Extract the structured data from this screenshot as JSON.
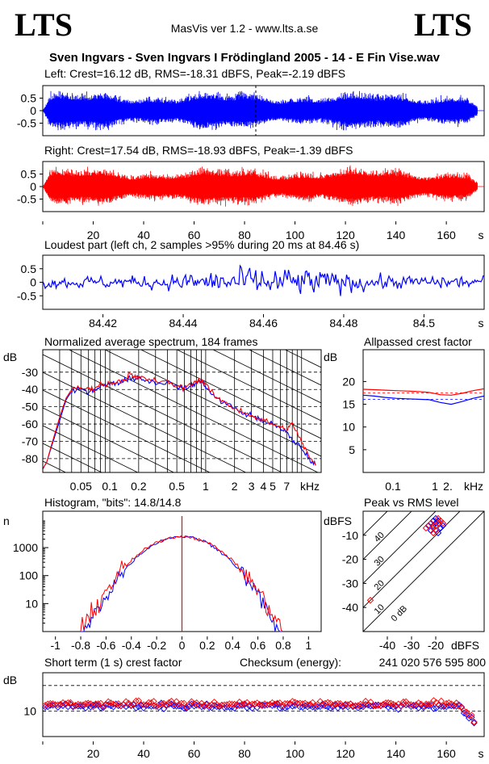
{
  "header": {
    "logo_left": "LTS",
    "logo_right": "LTS",
    "version": "MasVis ver 1.2 - www.lts.a.se",
    "title": "Sven Ingvars - Sven Ingvars I Frödingland 2005 - 14 - E Fin Vise.wav"
  },
  "colors": {
    "left": "#0000ff",
    "right": "#ff0000",
    "axes": "#000000"
  },
  "chart_data": [
    {
      "id": "left_waveform",
      "type": "area",
      "title": "Left: Crest=16.12 dB, RMS=-18.31 dBFS, Peak=-2.19 dBFS",
      "y_ticks": [
        "0.5",
        "0",
        "-0.5"
      ],
      "ylim": [
        -1,
        1
      ],
      "xlim": [
        0,
        175
      ],
      "envelope_peak_max": 0.78,
      "marker_x": 84.46,
      "series": [
        {
          "name": "Left",
          "color": "#0000ff"
        }
      ]
    },
    {
      "id": "right_waveform",
      "type": "area",
      "title": "Right: Crest=17.54 dB, RMS=-18.93 dBFS, Peak=-1.39 dBFS",
      "y_ticks": [
        "0.5",
        "0",
        "-0.5"
      ],
      "x_ticks": [
        "20",
        "40",
        "60",
        "80",
        "100",
        "120",
        "140",
        "160"
      ],
      "x_unit": "s",
      "ylim": [
        -1,
        1
      ],
      "xlim": [
        0,
        175
      ],
      "envelope_peak_max": 0.86,
      "series": [
        {
          "name": "Right",
          "color": "#ff0000"
        }
      ]
    },
    {
      "id": "loudest_part",
      "type": "line",
      "title": "Loudest part (left  ch, 2 samples >95% during 20 ms at 84.46 s)",
      "y_ticks": [
        "0.5",
        "0",
        "-0.5"
      ],
      "x_ticks": [
        "84.42",
        "84.44",
        "84.46",
        "84.48",
        "84.5"
      ],
      "x_unit": "s",
      "xlim": [
        84.405,
        84.515
      ],
      "ylim": [
        -1,
        1
      ],
      "series": [
        {
          "name": "Left",
          "color": "#0000ff"
        }
      ]
    },
    {
      "id": "spectrum",
      "type": "line",
      "title": "Normalized average spectrum, 184 frames",
      "ylabel": "dB",
      "y_ticks": [
        "-30",
        "-40",
        "-50",
        "-60",
        "-70",
        "-80"
      ],
      "x_ticks": [
        "0.05",
        "0.1",
        "0.2",
        "0.5",
        "1",
        "2",
        "3",
        "4",
        "5",
        "7",
        "kHz"
      ],
      "ylim": [
        -88,
        -17
      ],
      "series": [
        {
          "name": "Left",
          "color": "#0000ff",
          "points": [
            [
              0.02,
              -86
            ],
            [
              0.022,
              -82
            ],
            [
              0.025,
              -72
            ],
            [
              0.03,
              -58
            ],
            [
              0.035,
              -46
            ],
            [
              0.04,
              -41
            ],
            [
              0.05,
              -40
            ],
            [
              0.06,
              -41
            ],
            [
              0.07,
              -40
            ],
            [
              0.08,
              -38
            ],
            [
              0.1,
              -37
            ],
            [
              0.12,
              -36
            ],
            [
              0.14,
              -35
            ],
            [
              0.16,
              -33
            ],
            [
              0.18,
              -34
            ],
            [
              0.2,
              -33
            ],
            [
              0.25,
              -35
            ],
            [
              0.3,
              -36
            ],
            [
              0.4,
              -36
            ],
            [
              0.5,
              -38
            ],
            [
              0.6,
              -40
            ],
            [
              0.7,
              -38
            ],
            [
              0.8,
              -36
            ],
            [
              0.9,
              -35
            ],
            [
              1,
              -38
            ],
            [
              1.2,
              -44
            ],
            [
              1.5,
              -47
            ],
            [
              2,
              -51
            ],
            [
              2.5,
              -54
            ],
            [
              3,
              -55
            ],
            [
              3.5,
              -57
            ],
            [
              4,
              -58
            ],
            [
              5,
              -60
            ],
            [
              6,
              -63
            ],
            [
              7,
              -65
            ],
            [
              8,
              -69
            ],
            [
              10,
              -74
            ],
            [
              12,
              -80
            ],
            [
              14,
              -84
            ]
          ]
        },
        {
          "name": "Right",
          "color": "#ff0000",
          "points": [
            [
              0.02,
              -86
            ],
            [
              0.022,
              -82
            ],
            [
              0.025,
              -71
            ],
            [
              0.03,
              -56
            ],
            [
              0.035,
              -45
            ],
            [
              0.04,
              -40
            ],
            [
              0.05,
              -39
            ],
            [
              0.06,
              -40
            ],
            [
              0.07,
              -39
            ],
            [
              0.08,
              -37
            ],
            [
              0.1,
              -37
            ],
            [
              0.12,
              -35
            ],
            [
              0.14,
              -35
            ],
            [
              0.16,
              -31
            ],
            [
              0.18,
              -33
            ],
            [
              0.2,
              -33
            ],
            [
              0.25,
              -34
            ],
            [
              0.3,
              -35
            ],
            [
              0.4,
              -36
            ],
            [
              0.5,
              -38
            ],
            [
              0.6,
              -39
            ],
            [
              0.7,
              -37
            ],
            [
              0.8,
              -35
            ],
            [
              0.9,
              -35
            ],
            [
              1,
              -37
            ],
            [
              1.2,
              -43
            ],
            [
              1.5,
              -47
            ],
            [
              2,
              -51
            ],
            [
              2.5,
              -53
            ],
            [
              3,
              -55
            ],
            [
              3.5,
              -57
            ],
            [
              4,
              -58
            ],
            [
              5,
              -60
            ],
            [
              6,
              -62
            ],
            [
              7,
              -63
            ],
            [
              8,
              -60
            ],
            [
              10,
              -70
            ],
            [
              12,
              -79
            ],
            [
              14,
              -84
            ]
          ]
        }
      ]
    },
    {
      "id": "allpassed_crest",
      "type": "line",
      "title": "Allpassed crest factor",
      "ylabel": "dB",
      "y_ticks": [
        "20",
        "15",
        "10",
        "5"
      ],
      "x_ticks": [
        "0.1",
        "1",
        "2.",
        "kHz"
      ],
      "ylim": [
        0,
        27
      ],
      "series": [
        {
          "name": "Left",
          "color": "#0000ff",
          "values": [
            17.0,
            16.8,
            16.5,
            16.3,
            16.2,
            16.1,
            16.0,
            15.4,
            15.0,
            15.6,
            16.3,
            16.8
          ]
        },
        {
          "name": "Right",
          "color": "#ff0000",
          "values": [
            18.3,
            18.2,
            18.1,
            18.0,
            17.9,
            17.8,
            17.6,
            17.1,
            17.0,
            17.4,
            18.0,
            18.4
          ]
        }
      ]
    },
    {
      "id": "histogram",
      "type": "line",
      "title": "Histogram, \"bits\": 14.8/14.8",
      "ylabel": "n",
      "y_ticks": [
        "1000",
        "100",
        "10"
      ],
      "x_ticks": [
        "-1",
        "-0.8",
        "-0.6",
        "-0.4",
        "-0.2",
        "0",
        "0.2",
        "0.4",
        "0.6",
        "0.8",
        "1"
      ],
      "xlim": [
        -1.1,
        1.1
      ],
      "peak_count": 2500
    },
    {
      "id": "peak_vs_rms",
      "type": "scatter",
      "title": "Peak vs RMS level",
      "ylabel": "dBFS",
      "xlabel": "dBFS",
      "y_ticks": [
        "-10",
        "-20",
        "-30",
        "-40"
      ],
      "x_ticks": [
        "-40",
        "-30",
        "-20"
      ],
      "diagonal_labels": [
        "40",
        "30",
        "20",
        "10",
        "0 dB"
      ],
      "xlim": [
        -50,
        0
      ],
      "ylim": [
        -50,
        0
      ],
      "series": [
        {
          "name": "Left",
          "color": "#0000ff",
          "points": [
            [
              -20,
              -5
            ],
            [
              -19,
              -4
            ],
            [
              -21,
              -6
            ],
            [
              -18,
              -7
            ],
            [
              -22,
              -8
            ],
            [
              -20,
              -3
            ],
            [
              -17,
              -6
            ],
            [
              -19,
              -9
            ],
            [
              -21,
              -4
            ],
            [
              -23,
              -6
            ]
          ]
        },
        {
          "name": "Right",
          "color": "#ff0000",
          "points": [
            [
              -20,
              -6
            ],
            [
              -19,
              -5
            ],
            [
              -21,
              -7
            ],
            [
              -18,
              -4
            ],
            [
              -22,
              -5
            ],
            [
              -20,
              -8
            ],
            [
              -17,
              -5
            ],
            [
              -19,
              -3
            ],
            [
              -21,
              -9
            ],
            [
              -24,
              -7
            ],
            [
              -47,
              -37
            ]
          ]
        }
      ]
    },
    {
      "id": "short_term_crest",
      "type": "scatter",
      "title": "Short term (1 s) crest factor",
      "checksum_label": "Checksum (energy):",
      "checksum_value": "241 020 576 595 800",
      "ylabel": "dB",
      "y_ticks": [
        "10"
      ],
      "x_ticks": [
        "20",
        "40",
        "60",
        "80",
        "100",
        "120",
        "140",
        "160"
      ],
      "x_unit": "s",
      "xlim": [
        0,
        175
      ],
      "ylim": [
        0,
        25
      ],
      "series": [
        {
          "name": "Left",
          "color": "#0000ff"
        },
        {
          "name": "Right",
          "color": "#ff0000"
        }
      ]
    }
  ]
}
